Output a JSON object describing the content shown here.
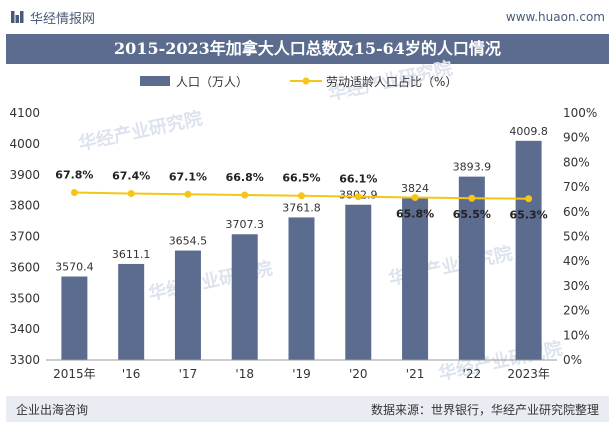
{
  "header": {
    "brand": "华经情报网",
    "url": "www.huaon.com"
  },
  "title": "2015-2023年加拿大人口总数及15-64岁的人口情况",
  "footer": {
    "left": "企业出海咨询",
    "right": "数据来源：世界银行，华经产业研究院整理"
  },
  "watermark": "华经产业研究院",
  "colors": {
    "bar": "#5b6c8f",
    "line": "#f5c518",
    "title_band": "#5b6c8f"
  },
  "chart_data": {
    "type": "bar",
    "categories": [
      "2015年",
      "'16",
      "'17",
      "'18",
      "'19",
      "'20",
      "'21",
      "'22",
      "2023年"
    ],
    "series": [
      {
        "name": "人口（万人）",
        "type": "bar",
        "axis": "left",
        "values": [
          3570.4,
          3611.1,
          3654.5,
          3707.3,
          3761.8,
          3802.9,
          3824,
          3893.9,
          4009.8
        ],
        "labels": [
          "3570.4",
          "3611.1",
          "3654.5",
          "3707.3",
          "3761.8",
          "3802.9",
          "3824",
          "3893.9",
          "4009.8"
        ]
      },
      {
        "name": "劳动适龄人口占比（%）",
        "type": "line",
        "axis": "right",
        "values": [
          67.8,
          67.4,
          67.1,
          66.8,
          66.5,
          66.1,
          65.8,
          65.5,
          65.3
        ],
        "labels": [
          "67.8%",
          "67.4%",
          "67.1%",
          "66.8%",
          "66.5%",
          "66.1%",
          "65.8%",
          "65.5%",
          "65.3%"
        ]
      }
    ],
    "y_left": {
      "range": [
        3300,
        4100
      ],
      "ticks": [
        "3300",
        "3400",
        "3500",
        "3600",
        "3700",
        "3800",
        "3900",
        "4000",
        "4100"
      ]
    },
    "y_right": {
      "range": [
        0,
        100
      ],
      "ticks": [
        "0%",
        "10%",
        "20%",
        "30%",
        "40%",
        "50%",
        "60%",
        "70%",
        "80%",
        "90%",
        "100%"
      ]
    },
    "grid": false,
    "legend": "top-center"
  }
}
